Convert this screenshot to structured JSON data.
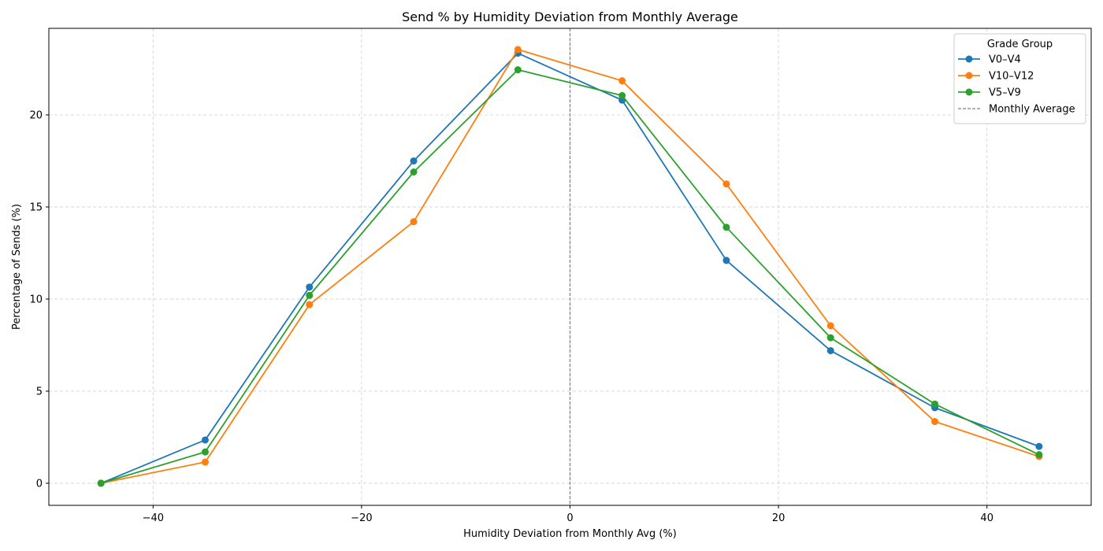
{
  "chart_data": {
    "type": "line",
    "title": "Send % by Humidity Deviation from Monthly Average",
    "xlabel": "Humidity Deviation from Monthly Avg (%)",
    "ylabel": "Percentage of Sends (%)",
    "xlim": [
      -50,
      50
    ],
    "ylim": [
      -1.2,
      24.7
    ],
    "xticks": [
      -40,
      -20,
      0,
      20,
      40
    ],
    "yticks": [
      0,
      5,
      10,
      15,
      20
    ],
    "grid": true,
    "legend": {
      "title": "Grade Group",
      "placement": "top-right"
    },
    "x": [
      -45,
      -35,
      -25,
      -15,
      -5,
      5,
      15,
      25,
      35,
      45
    ],
    "series": [
      {
        "name": "V0–V4",
        "color": "#1f77b4",
        "values": [
          0.0,
          2.35,
          10.65,
          17.5,
          23.35,
          20.8,
          12.1,
          7.2,
          4.1,
          2.0
        ]
      },
      {
        "name": "V10–V12",
        "color": "#ff7f0e",
        "values": [
          0.0,
          1.15,
          9.7,
          14.2,
          23.55,
          21.85,
          16.25,
          8.55,
          3.35,
          1.45
        ]
      },
      {
        "name": "V5–V9",
        "color": "#2ca02c",
        "values": [
          0.0,
          1.7,
          10.2,
          16.9,
          22.45,
          21.05,
          13.9,
          7.9,
          4.3,
          1.55
        ]
      }
    ],
    "reference_line": {
      "name": "Monthly Average",
      "x": 0,
      "color": "#808080"
    }
  }
}
